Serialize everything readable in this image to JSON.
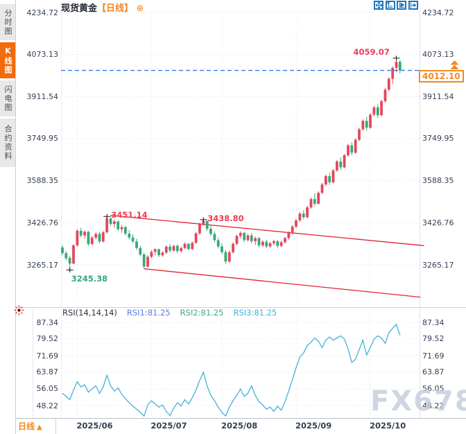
{
  "sidebar": {
    "tabs": [
      {
        "label": "分时图",
        "active": false
      },
      {
        "label": "K线图",
        "active": true
      },
      {
        "label": "闪电图",
        "active": false
      },
      {
        "label": "合约资料",
        "active": false
      }
    ]
  },
  "header": {
    "title": "现货黄金",
    "period_tag": "【日线】",
    "add_symbol": "⊕",
    "toolbar": [
      "pan",
      "axis-zoom",
      "axis-play",
      "axis-step"
    ]
  },
  "footer": {
    "period_label": "日线",
    "arrow": "▲"
  },
  "watermark": "FX678",
  "chart_data": {
    "type": "candlestick",
    "title": "现货黄金 日线",
    "colors": {
      "up": "#e2485c",
      "down": "#36a97a",
      "trendline": "#e3242f",
      "current_price_line": "#2c7ee0",
      "price_tag": "#f5871f",
      "accent_orange": "#f26c0d",
      "toolbar_blue": "#1b75bb",
      "annotation_high": "#ef3b55",
      "annotation_low": "#2faa7e",
      "rsi_line": "#45b0d9",
      "axis_text": "#333f54",
      "grid": "#dbe0ea"
    },
    "price_axis_ticks": [
      4234.72,
      4073.13,
      3911.54,
      3749.95,
      3588.35,
      3426.76,
      3265.17
    ],
    "x_labels": [
      "2025/06",
      "2025/07",
      "2025/08",
      "2025/09",
      "2025/10"
    ],
    "month_tick_indices": [
      4,
      24,
      43,
      63,
      83
    ],
    "current_price": 4012.1,
    "current_price_label": "4012.10",
    "annotations": [
      {
        "text": "3451.14",
        "type": "high",
        "candle_index": 12,
        "price": 3451.14,
        "color": "#ef3b55"
      },
      {
        "text": "3438.80",
        "type": "high",
        "candle_index": 38,
        "price": 3438.8,
        "color": "#ef3b55"
      },
      {
        "text": "3245.38",
        "type": "low",
        "candle_index": 2,
        "price": 3245.38,
        "color": "#2faa7e"
      },
      {
        "text": "4059.07",
        "type": "high",
        "candle_index": 90,
        "price": 4059.07,
        "color": "#ef3b55",
        "label_side": "left"
      }
    ],
    "trendlines": [
      {
        "x1_index": 13,
        "price1": 3455,
        "x2_index": 97.5,
        "price2": 3339
      },
      {
        "x1_index": 22,
        "price1": 3250,
        "x2_index": 96.5,
        "price2": 3141
      }
    ],
    "candles": [
      [
        3332,
        3340,
        3302,
        3310
      ],
      [
        3310,
        3318,
        3282,
        3290
      ],
      [
        3292,
        3300,
        3245.4,
        3270
      ],
      [
        3270,
        3345,
        3268,
        3340
      ],
      [
        3340,
        3402,
        3335,
        3396
      ],
      [
        3396,
        3408,
        3370,
        3378
      ],
      [
        3378,
        3398,
        3365,
        3392
      ],
      [
        3392,
        3396,
        3338,
        3345
      ],
      [
        3345,
        3376,
        3340,
        3370
      ],
      [
        3370,
        3390,
        3362,
        3384
      ],
      [
        3384,
        3392,
        3348,
        3355
      ],
      [
        3355,
        3395,
        3350,
        3390
      ],
      [
        3390,
        3451.1,
        3385,
        3443
      ],
      [
        3443,
        3449,
        3415,
        3422
      ],
      [
        3422,
        3440,
        3408,
        3432
      ],
      [
        3432,
        3436,
        3395,
        3402
      ],
      [
        3402,
        3418,
        3388,
        3410
      ],
      [
        3410,
        3415,
        3378,
        3385
      ],
      [
        3385,
        3398,
        3362,
        3370
      ],
      [
        3370,
        3382,
        3348,
        3355
      ],
      [
        3355,
        3365,
        3322,
        3330
      ],
      [
        3330,
        3338,
        3298,
        3305
      ],
      [
        3305,
        3312,
        3250,
        3258
      ],
      [
        3258,
        3302,
        3255,
        3296
      ],
      [
        3296,
        3322,
        3290,
        3315
      ],
      [
        3315,
        3330,
        3302,
        3325
      ],
      [
        3325,
        3328,
        3295,
        3302
      ],
      [
        3302,
        3318,
        3296,
        3312
      ],
      [
        3312,
        3340,
        3306,
        3335
      ],
      [
        3335,
        3345,
        3312,
        3320
      ],
      [
        3320,
        3342,
        3315,
        3338
      ],
      [
        3338,
        3344,
        3310,
        3318
      ],
      [
        3318,
        3336,
        3312,
        3330
      ],
      [
        3330,
        3352,
        3325,
        3346
      ],
      [
        3346,
        3350,
        3320,
        3326
      ],
      [
        3326,
        3355,
        3322,
        3350
      ],
      [
        3350,
        3392,
        3346,
        3386
      ],
      [
        3386,
        3428,
        3380,
        3422
      ],
      [
        3422,
        3438.8,
        3414,
        3434
      ],
      [
        3434,
        3436,
        3396,
        3404
      ],
      [
        3404,
        3415,
        3376,
        3384
      ],
      [
        3384,
        3394,
        3352,
        3360
      ],
      [
        3360,
        3370,
        3328,
        3336
      ],
      [
        3336,
        3348,
        3306,
        3314
      ],
      [
        3314,
        3322,
        3268,
        3278
      ],
      [
        3278,
        3320,
        3272,
        3314
      ],
      [
        3314,
        3352,
        3308,
        3346
      ],
      [
        3346,
        3382,
        3340,
        3376
      ],
      [
        3376,
        3394,
        3366,
        3388
      ],
      [
        3388,
        3392,
        3352,
        3360
      ],
      [
        3360,
        3384,
        3355,
        3378
      ],
      [
        3378,
        3388,
        3348,
        3356
      ],
      [
        3356,
        3374,
        3342,
        3368
      ],
      [
        3368,
        3372,
        3332,
        3340
      ],
      [
        3340,
        3360,
        3334,
        3354
      ],
      [
        3354,
        3362,
        3328,
        3336
      ],
      [
        3336,
        3354,
        3330,
        3348
      ],
      [
        3348,
        3362,
        3340,
        3356
      ],
      [
        3356,
        3360,
        3330,
        3338
      ],
      [
        3338,
        3358,
        3332,
        3352
      ],
      [
        3352,
        3374,
        3346,
        3368
      ],
      [
        3368,
        3394,
        3362,
        3388
      ],
      [
        3388,
        3418,
        3382,
        3412
      ],
      [
        3412,
        3442,
        3406,
        3436
      ],
      [
        3436,
        3468,
        3430,
        3462
      ],
      [
        3462,
        3475,
        3440,
        3448
      ],
      [
        3448,
        3492,
        3444,
        3486
      ],
      [
        3486,
        3524,
        3480,
        3518
      ],
      [
        3518,
        3540,
        3492,
        3500
      ],
      [
        3500,
        3548,
        3496,
        3542
      ],
      [
        3542,
        3580,
        3536,
        3574
      ],
      [
        3574,
        3612,
        3568,
        3606
      ],
      [
        3606,
        3620,
        3572,
        3582
      ],
      [
        3582,
        3634,
        3578,
        3628
      ],
      [
        3628,
        3668,
        3622,
        3662
      ],
      [
        3662,
        3678,
        3630,
        3640
      ],
      [
        3640,
        3692,
        3636,
        3686
      ],
      [
        3686,
        3730,
        3680,
        3724
      ],
      [
        3724,
        3736,
        3686,
        3696
      ],
      [
        3696,
        3752,
        3692,
        3746
      ],
      [
        3746,
        3792,
        3740,
        3786
      ],
      [
        3786,
        3824,
        3780,
        3818
      ],
      [
        3818,
        3834,
        3782,
        3792
      ],
      [
        3792,
        3848,
        3788,
        3842
      ],
      [
        3842,
        3876,
        3836,
        3870
      ],
      [
        3870,
        3882,
        3830,
        3840
      ],
      [
        3840,
        3900,
        3836,
        3894
      ],
      [
        3894,
        3944,
        3888,
        3938
      ],
      [
        3938,
        3986,
        3932,
        3980
      ],
      [
        3980,
        4028,
        3960,
        4022
      ],
      [
        4022,
        4059.1,
        4005,
        4045
      ],
      [
        4045,
        4052,
        4000,
        4012.1
      ]
    ],
    "rsi": {
      "label": "RSI(14,14,14)",
      "series_labels": [
        {
          "text": "RSI1:81.25",
          "color": "#5b7fe0"
        },
        {
          "text": "RSI2:81.25",
          "color": "#3fae7a"
        },
        {
          "text": "RSI3:81.25",
          "color": "#3eb3d8"
        }
      ],
      "ticks": [
        87.34,
        79.52,
        71.69,
        63.87,
        56.05,
        48.22
      ],
      "line_color": "#45b0d9",
      "values": [
        54,
        52.5,
        51,
        55.5,
        59.5,
        57,
        58,
        54.5,
        56,
        57.5,
        54,
        57,
        62.5,
        57.5,
        55,
        56.5,
        53.5,
        51.5,
        49.5,
        48,
        46.5,
        45,
        43.3,
        48.5,
        50.5,
        49,
        47.5,
        48.5,
        45.5,
        43.5,
        47,
        49.5,
        48,
        51,
        49,
        52,
        55.5,
        60,
        63.9,
        57.5,
        53,
        50.5,
        47.5,
        45,
        43.3,
        47.5,
        50.5,
        53,
        56,
        52.5,
        54,
        57.5,
        53,
        50,
        48.5,
        46.5,
        47.5,
        45.5,
        48,
        46,
        50,
        55,
        60.5,
        66,
        71,
        73,
        76.5,
        78,
        80,
        78.5,
        75.5,
        79,
        80.5,
        79,
        80,
        81,
        79.5,
        75,
        68.5,
        70,
        74.5,
        79,
        72,
        75.5,
        79.5,
        81,
        80,
        77.5,
        82.5,
        84.5,
        86.5,
        81.25
      ]
    }
  }
}
